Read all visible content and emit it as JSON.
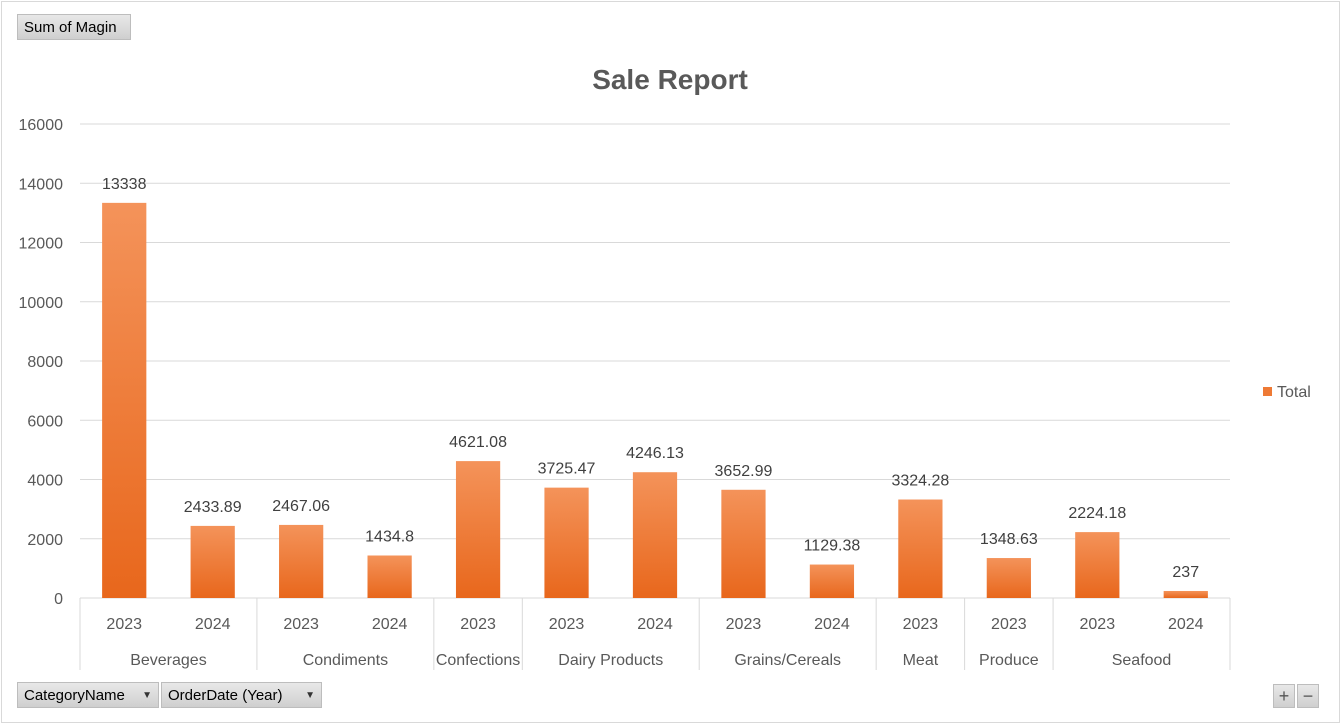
{
  "filters": {
    "value_field": "Sum of Magin",
    "axis_field_1": "CategoryName",
    "axis_field_2": "OrderDate (Year)"
  },
  "colors": {
    "bar_top": "#f4935a",
    "bar_bottom": "#e8671c",
    "grid": "#d9d9d9"
  },
  "chart_data": {
    "type": "bar",
    "title": "Sale Report",
    "xlabel": "",
    "ylabel": "",
    "ylim": [
      0,
      16000
    ],
    "yticks": [
      0,
      2000,
      4000,
      6000,
      8000,
      10000,
      12000,
      14000,
      16000
    ],
    "legend": {
      "position": "right",
      "entries": [
        "Total"
      ]
    },
    "grid": true,
    "groups": [
      {
        "name": "Beverages",
        "years": [
          "2023",
          "2024"
        ],
        "values": [
          13338,
          2433.89
        ]
      },
      {
        "name": "Condiments",
        "years": [
          "2023",
          "2024"
        ],
        "values": [
          2467.06,
          1434.8
        ]
      },
      {
        "name": "Confections",
        "years": [
          "2023"
        ],
        "values": [
          4621.08
        ]
      },
      {
        "name": "Dairy Products",
        "years": [
          "2023",
          "2024"
        ],
        "values": [
          3725.47,
          4246.13
        ]
      },
      {
        "name": "Grains/Cereals",
        "years": [
          "2023",
          "2024"
        ],
        "values": [
          3652.99,
          1129.38
        ]
      },
      {
        "name": "Meat",
        "years": [
          "2023"
        ],
        "values": [
          3324.28
        ]
      },
      {
        "name": "Produce",
        "years": [
          "2023"
        ],
        "values": [
          1348.63
        ]
      },
      {
        "name": "Seafood",
        "years": [
          "2023",
          "2024"
        ],
        "values": [
          2224.18,
          237
        ]
      }
    ]
  }
}
